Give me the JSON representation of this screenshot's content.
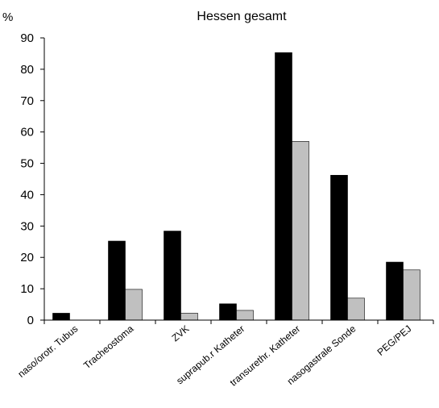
{
  "chart_data": {
    "type": "bar",
    "title": "Hessen gesamt",
    "ylabel": "%",
    "xlabel": "",
    "ylim": [
      0,
      90
    ],
    "yticks": [
      0,
      10,
      20,
      30,
      40,
      50,
      60,
      70,
      80,
      90
    ],
    "grid": false,
    "categories": [
      "naso/orotr. Tubus",
      "Tracheostoma",
      "ZVK",
      "suprapub.r Katheter",
      "transurethr. Katheter",
      "nasogastrale Sonde",
      "PEG/PEJ"
    ],
    "series": [
      {
        "values": [
          2.2,
          25.2,
          28.4,
          5.2,
          85.3,
          46.2,
          18.5
        ],
        "color": "#000000"
      },
      {
        "values": [
          0,
          9.8,
          2.2,
          3.1,
          57.0,
          7.0,
          16.0
        ],
        "color": "#c0c0c0"
      }
    ]
  }
}
